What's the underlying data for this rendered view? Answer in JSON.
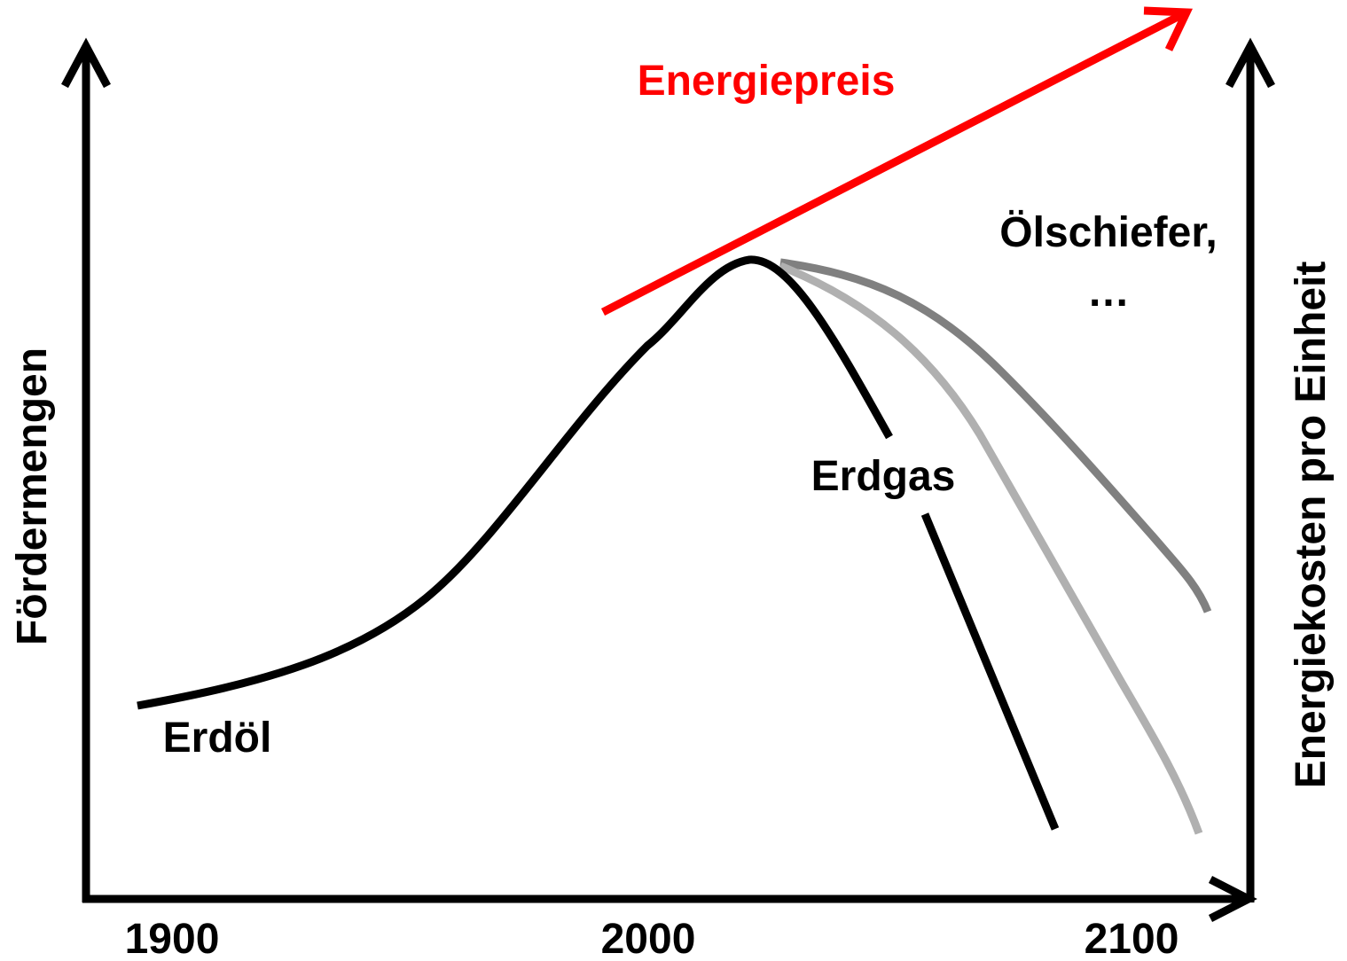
{
  "labels": {
    "price": "Energiepreis",
    "shale": "Ölschiefer,",
    "ellipsis": "…",
    "gas": "Erdgas",
    "oil": "Erdöl",
    "y_left": "Fördermengen",
    "y_right": "Energiekosten pro Einheit"
  },
  "x_axis": {
    "labels": [
      "1900",
      "2000",
      "2100"
    ]
  }
}
